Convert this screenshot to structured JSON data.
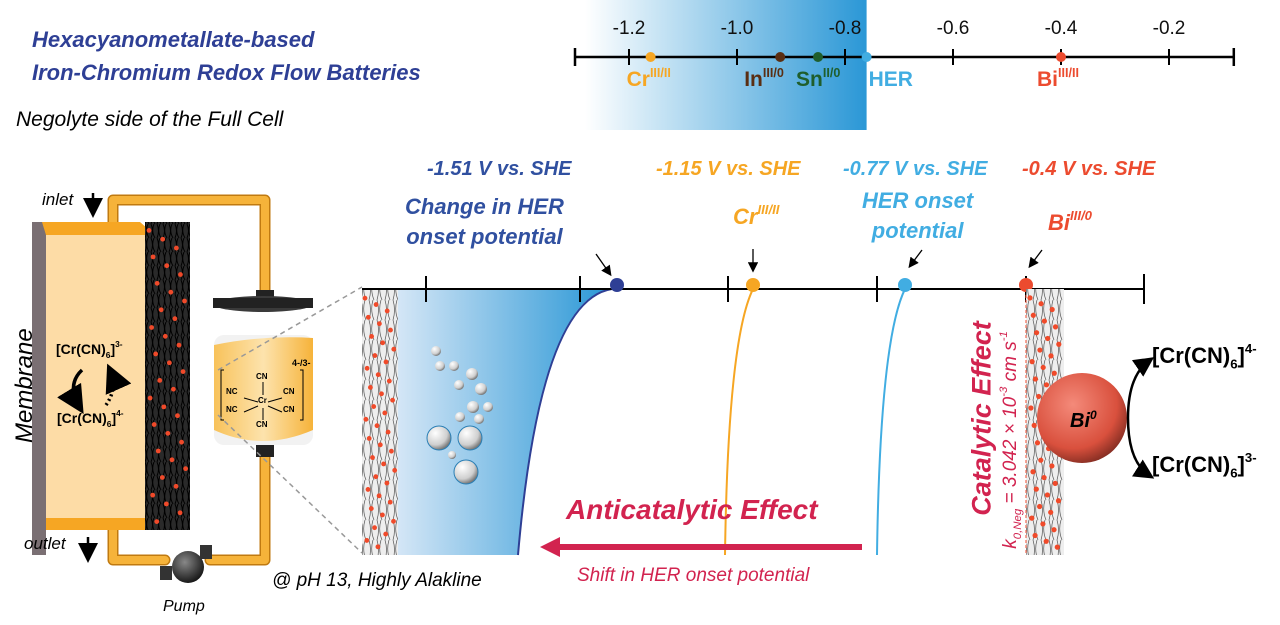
{
  "header": {
    "title_line1": "Hexacyanometallate-based",
    "title_line2": "Iron-Chromium Redox Flow Batteries",
    "subtitle": "Negolyte side of the Full Cell",
    "title_color": "#2e3f95"
  },
  "top_scale": {
    "ticks": [
      -1.2,
      -1.0,
      -0.8,
      -0.6,
      -0.4,
      -0.2
    ],
    "tick_labels": [
      "-1.2",
      "-1.0",
      "-0.8",
      "-0.6",
      "-0.4",
      "-0.2"
    ],
    "range": [
      -1.3,
      -0.08
    ],
    "shaded_region": [
      -1.3,
      -0.76
    ],
    "shade_color": "#2a97d6",
    "markers": [
      {
        "label": "Cr",
        "sup": "III/II",
        "value": -1.16,
        "color": "#f6a623"
      },
      {
        "label": "In",
        "sup": "III/0",
        "value": -0.92,
        "color": "#5a2e12"
      },
      {
        "label": "Sn",
        "sup": "II/0",
        "value": -0.85,
        "color": "#1f5e2c"
      },
      {
        "label": "HER",
        "sup": "",
        "value": -0.76,
        "color": "#41ade2"
      },
      {
        "label": "Bi",
        "sup": "III/II",
        "value": -0.4,
        "color": "#ec4b2f"
      }
    ]
  },
  "cell": {
    "inlet": "inlet",
    "outlet": "outlet",
    "membrane": "Membrane",
    "pump": "Pump",
    "species_top": "[Cr(CN)",
    "species_top_sub": "6",
    "species_top_sup": "3-",
    "species_bottom": "[Cr(CN)",
    "species_bottom_sub": "6",
    "species_bottom_sup": "4-",
    "complex_charge": "4-/3-",
    "complex_center": "Cr",
    "ligand": "CN",
    "ligand_rev": "NC"
  },
  "potentials": {
    "p1": {
      "text": "-1.51 V vs. SHE",
      "color": "#3050a0"
    },
    "p2": {
      "text": "-1.15 V vs. SHE",
      "color": "#f6a623"
    },
    "p3": {
      "text": "-0.77 V vs. SHE",
      "color": "#41ade2"
    },
    "p4": {
      "text": "-0.4 V vs. SHE",
      "color": "#ec4b2f"
    }
  },
  "annotations": {
    "change_her_line1": "Change in HER",
    "change_her_line2": "onset potential",
    "cr_label": "Cr",
    "cr_sup": "III/II",
    "her_onset_line1": "HER onset",
    "her_onset_line2": "potential",
    "bi_label": "Bi",
    "bi_sup": "III/0",
    "anticatalytic": "Anticatalytic Effect",
    "shift": "Shift in HER onset potential",
    "ph": "@ pH 13, Highly Alakline",
    "catalytic": "Catalytic Effect",
    "k_symbol": "k",
    "k_sub": "0,Neg",
    "k_value": " = 3.042 × 10",
    "k_exp": "-3",
    "k_unit": " cm s",
    "k_unit_exp": "-1",
    "bi0": "Bi",
    "bi0_sup": "0",
    "product_top": "[Cr(CN)",
    "product_top_sub": "6",
    "product_top_sup": "4-",
    "product_bottom": "[Cr(CN)",
    "product_bottom_sub": "6",
    "product_bottom_sup": "3-",
    "accent_color": "#d2234f"
  }
}
